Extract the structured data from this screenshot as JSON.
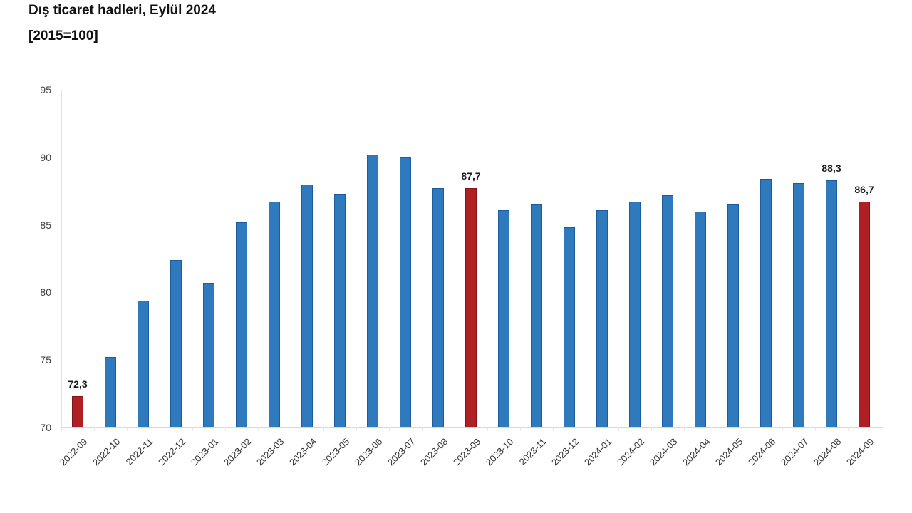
{
  "header": {
    "title": "Dış ticaret hadleri, Eylül 2024",
    "subtitle": "[2015=100]"
  },
  "chart_data": {
    "type": "bar",
    "title": "Dış ticaret hadleri, Eylül 2024",
    "subtitle": "[2015=100]",
    "categories": [
      "2022-09",
      "2022-10",
      "2022-11",
      "2022-12",
      "2023-01",
      "2023-02",
      "2023-03",
      "2023-04",
      "2023-05",
      "2023-06",
      "2023-07",
      "2023-08",
      "2023-09",
      "2023-10",
      "2023-11",
      "2023-12",
      "2024-01",
      "2024-02",
      "2024-03",
      "2024-04",
      "2024-05",
      "2024-06",
      "2024-07",
      "2024-08",
      "2024-09"
    ],
    "values": [
      72.3,
      75.2,
      79.4,
      82.4,
      80.7,
      85.2,
      86.7,
      88.0,
      87.3,
      90.2,
      90.0,
      87.7,
      87.7,
      86.1,
      86.5,
      84.8,
      86.1,
      86.7,
      87.2,
      86.0,
      86.5,
      88.4,
      88.1,
      88.3,
      86.7
    ],
    "highlighted_indices": [
      0,
      12,
      24
    ],
    "data_labels": [
      {
        "index": 0,
        "text": "72,3"
      },
      {
        "index": 12,
        "text": "87,7"
      },
      {
        "index": 23,
        "text": "88,3"
      },
      {
        "index": 24,
        "text": "86,7"
      }
    ],
    "ylim": [
      70,
      95
    ],
    "yticks": [
      "95",
      "90",
      "85",
      "80",
      "75",
      "70"
    ],
    "ytick_values": [
      95,
      90,
      85,
      80,
      75,
      70
    ],
    "grid": false,
    "legend": "none",
    "colors": {
      "bar_fill": "#2e7abc",
      "bar_border": "#1c5c9e",
      "highlight_fill": "#b01f24",
      "highlight_border": "#83151a",
      "axis_line": "#dcdcdc",
      "tick_text": "#3f3f3f",
      "label_text": "#1a1a1a"
    }
  }
}
